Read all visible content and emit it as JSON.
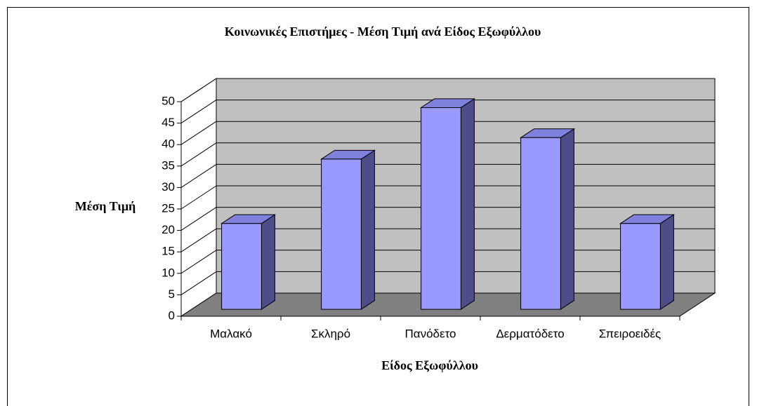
{
  "chart_data": {
    "type": "bar3d",
    "title": "Κοινωνικές Επιστήμες - Μέση Τιμή ανά Είδος Εξωφύλλου",
    "x_label": "Είδος Εξωφύλλου",
    "y_label": "Μέση Τιμή",
    "categories": [
      "Μαλακό",
      "Σκληρό",
      "Πανόδετο",
      "Δερματόδετο",
      "Σπειροειδές"
    ],
    "values": [
      20,
      35,
      47,
      40,
      20
    ],
    "color": "#9999ff",
    "ylim": [
      0,
      50
    ],
    "yticks": [
      0,
      5,
      10,
      15,
      20,
      25,
      30,
      35,
      40,
      45,
      50
    ],
    "grid": true
  }
}
